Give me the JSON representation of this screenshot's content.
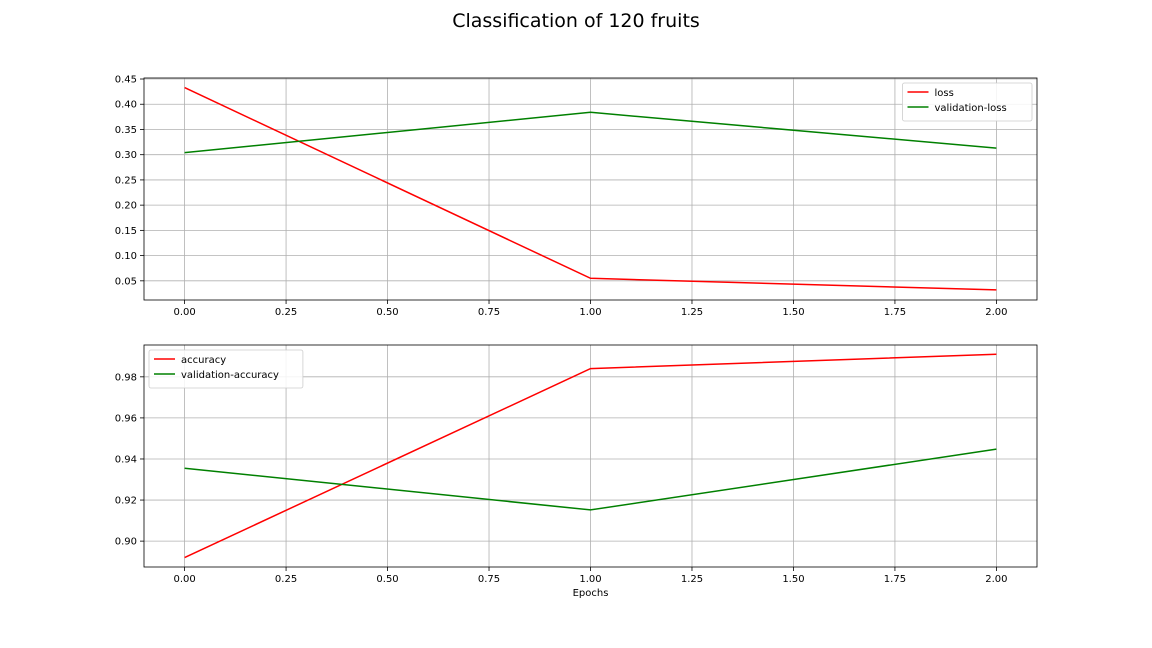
{
  "title": "Classification of 120 fruits",
  "chart_data": [
    {
      "type": "line",
      "x": [
        0,
        1,
        2
      ],
      "series": [
        {
          "name": "loss",
          "color": "#ff0000",
          "values": [
            0.433,
            0.055,
            0.032
          ]
        },
        {
          "name": "validation-loss",
          "color": "#008000",
          "values": [
            0.304,
            0.384,
            0.313
          ]
        }
      ],
      "xlabel": "",
      "ylabel": "",
      "xlim": [
        -0.1,
        2.1
      ],
      "ylim": [
        0.012,
        0.452
      ],
      "xticks": [
        "0.00",
        "0.25",
        "0.50",
        "0.75",
        "1.00",
        "1.25",
        "1.50",
        "1.75",
        "2.00"
      ],
      "yticks": [
        "0.05",
        "0.10",
        "0.15",
        "0.20",
        "0.25",
        "0.30",
        "0.35",
        "0.40",
        "0.45"
      ],
      "grid": true,
      "legend": "upper right"
    },
    {
      "type": "line",
      "x": [
        0,
        1,
        2
      ],
      "series": [
        {
          "name": "accuracy",
          "color": "#ff0000",
          "values": [
            0.892,
            0.984,
            0.991
          ]
        },
        {
          "name": "validation-accuracy",
          "color": "#008000",
          "values": [
            0.9355,
            0.9152,
            0.9448
          ]
        }
      ],
      "xlabel": "Epochs",
      "ylabel": "",
      "xlim": [
        -0.1,
        2.1
      ],
      "ylim": [
        0.8874,
        0.9955
      ],
      "xticks": [
        "0.00",
        "0.25",
        "0.50",
        "0.75",
        "1.00",
        "1.25",
        "1.50",
        "1.75",
        "2.00"
      ],
      "yticks": [
        "0.90",
        "0.92",
        "0.94",
        "0.96",
        "0.98"
      ],
      "grid": true,
      "legend": "upper left"
    }
  ]
}
